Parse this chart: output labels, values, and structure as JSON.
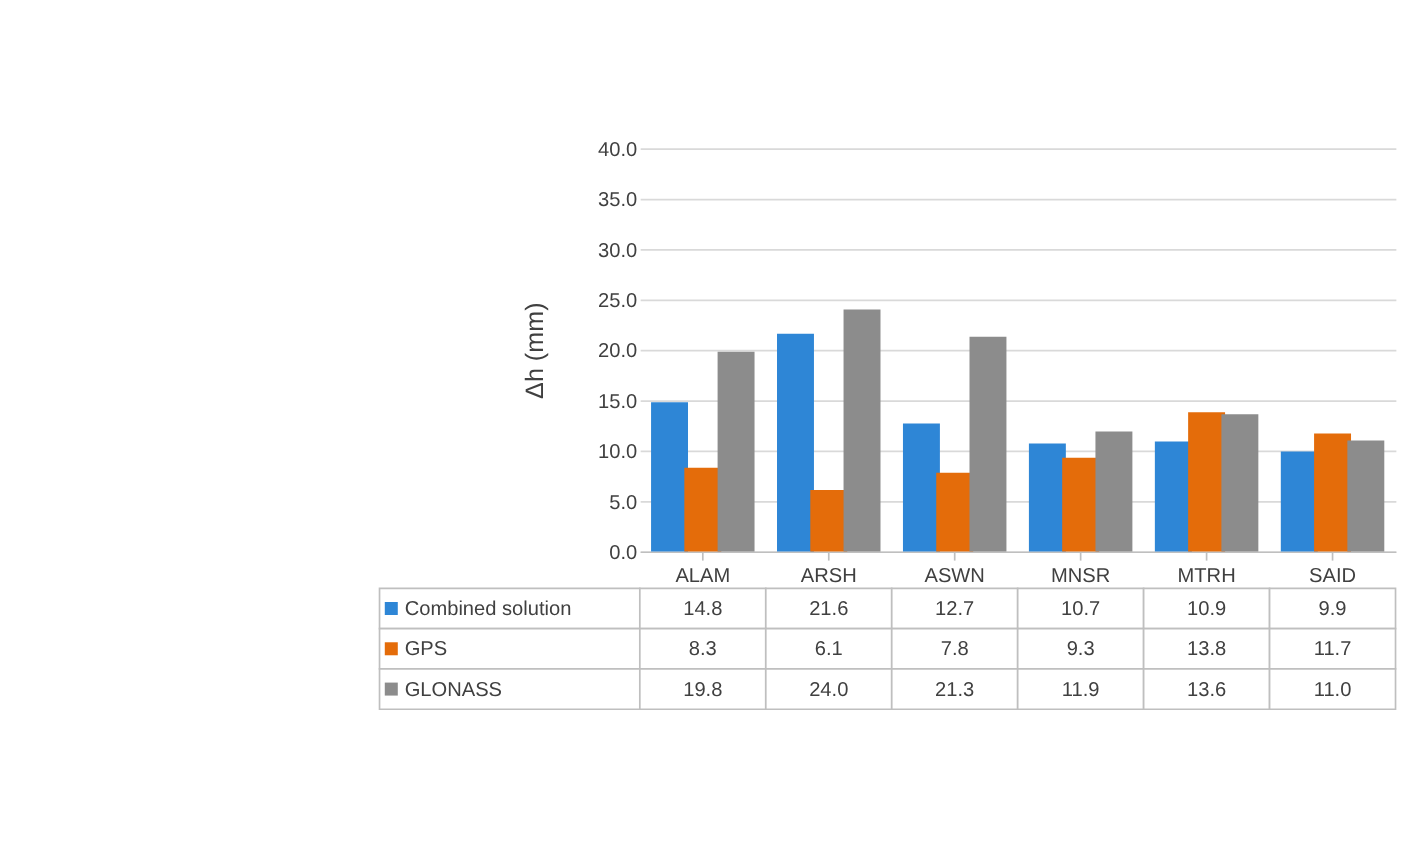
{
  "chart_data": {
    "type": "bar",
    "ylabel": "Δh (mm)",
    "categories": [
      "ALAM",
      "ARSH",
      "ASWN",
      "MNSR",
      "MTRH",
      "SAID"
    ],
    "series": [
      {
        "name": "Combined solution",
        "color": "#2e86d6",
        "values": [
          14.8,
          21.6,
          12.7,
          10.7,
          10.9,
          9.9
        ],
        "value_labels": [
          "14.8",
          "21.6",
          "12.7",
          "10.7",
          "10.9",
          "9.9"
        ]
      },
      {
        "name": "GPS",
        "color": "#e46c0a",
        "values": [
          8.3,
          6.1,
          7.8,
          9.3,
          13.8,
          11.7
        ],
        "value_labels": [
          "8.3",
          "6.1",
          "7.8",
          "9.3",
          "13.8",
          "11.7"
        ]
      },
      {
        "name": "GLONASS",
        "color": "#8c8c8c",
        "values": [
          19.8,
          24.0,
          21.3,
          11.9,
          13.6,
          11.0
        ],
        "value_labels": [
          "19.8",
          "24.0",
          "21.3",
          "11.9",
          "13.6",
          "11.0"
        ]
      }
    ],
    "ylim": [
      0,
      40
    ],
    "yticks": [
      {
        "value": 0,
        "label": "0.0"
      },
      {
        "value": 5,
        "label": "5.0"
      },
      {
        "value": 10,
        "label": "10.0"
      },
      {
        "value": 15,
        "label": "15.0"
      },
      {
        "value": 20,
        "label": "20.0"
      },
      {
        "value": 25,
        "label": "25.0"
      },
      {
        "value": 30,
        "label": "30.0"
      },
      {
        "value": 35,
        "label": "35.0"
      },
      {
        "value": 40,
        "label": "40.0"
      }
    ],
    "grid": "y",
    "legend": "bottom"
  }
}
